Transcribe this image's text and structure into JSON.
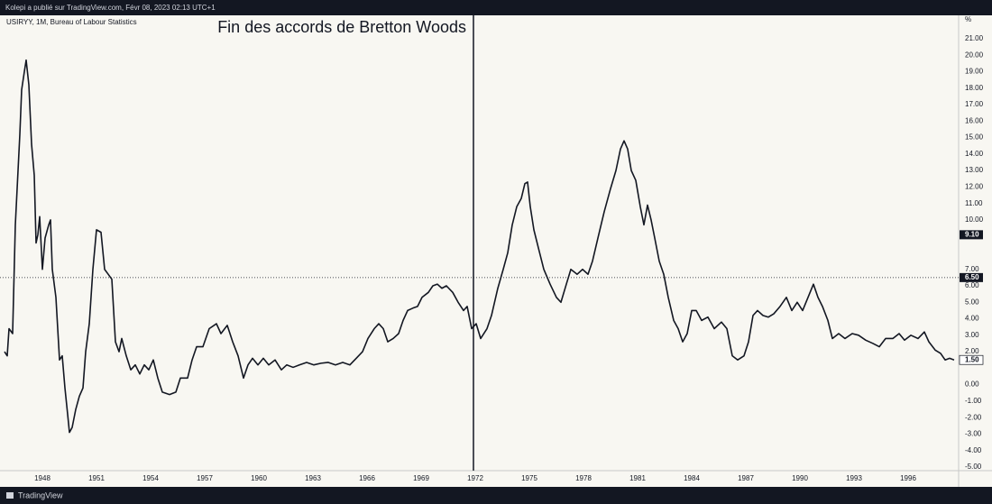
{
  "header": {
    "text": "Kolepi a publié sur TradingView.com, Févr 08, 2023 02:13 UTC+1"
  },
  "footer": {
    "text": "TradingView"
  },
  "chart_data": {
    "type": "line",
    "legend_text": "USIRYY, 1M, Bureau of Labour Statistics",
    "y_unit": "%",
    "color": "#131722",
    "grid": false,
    "xlim": [
      1945.65,
      1998.8
    ],
    "ylim": [
      -5.22,
      22.42
    ],
    "xticks": [
      1948,
      1951,
      1954,
      1957,
      1960,
      1963,
      1966,
      1969,
      1972,
      1975,
      1978,
      1981,
      1984,
      1987,
      1990,
      1993,
      1996
    ],
    "yticks": [
      {
        "value": -5,
        "label": "-5.00"
      },
      {
        "value": -4,
        "label": "-4.00"
      },
      {
        "value": -3,
        "label": "-3.00"
      },
      {
        "value": -2,
        "label": "-2.00"
      },
      {
        "value": -1,
        "label": "-1.00"
      },
      {
        "value": 0,
        "label": "0.00"
      },
      {
        "value": 2,
        "label": "2.00"
      },
      {
        "value": 3,
        "label": "3.00"
      },
      {
        "value": 4,
        "label": "4.00"
      },
      {
        "value": 5,
        "label": "5.00"
      },
      {
        "value": 6,
        "label": "6.00"
      },
      {
        "value": 7,
        "label": "7.00"
      },
      {
        "value": 10,
        "label": "10.00"
      },
      {
        "value": 11,
        "label": "11.00"
      },
      {
        "value": 12,
        "label": "12.00"
      },
      {
        "value": 13,
        "label": "13.00"
      },
      {
        "value": 14,
        "label": "14.00"
      },
      {
        "value": 15,
        "label": "15.00"
      },
      {
        "value": 16,
        "label": "16.00"
      },
      {
        "value": 17,
        "label": "17.00"
      },
      {
        "value": 18,
        "label": "18.00"
      },
      {
        "value": 19,
        "label": "19.00"
      },
      {
        "value": 20,
        "label": "20.00"
      },
      {
        "value": 21,
        "label": "21.00"
      }
    ],
    "price_labels": [
      {
        "value": 9.1,
        "label": "9.10",
        "style": "dark",
        "line": false
      },
      {
        "value": 6.5,
        "label": "6.50",
        "style": "dark",
        "line": true
      },
      {
        "value": 1.5,
        "label": "1.50",
        "style": "light",
        "line": false
      }
    ],
    "vline": {
      "x": 1971.9,
      "text": "Fin des accords de Bretton Woods"
    },
    "x": [
      1945.9,
      1946.05,
      1946.15,
      1946.35,
      1946.5,
      1946.75,
      1946.85,
      1947.0,
      1947.1,
      1947.25,
      1947.4,
      1947.55,
      1947.65,
      1947.75,
      1947.85,
      1948.0,
      1948.15,
      1948.35,
      1948.45,
      1948.55,
      1948.75,
      1948.95,
      1949.1,
      1949.25,
      1949.4,
      1949.5,
      1949.65,
      1949.85,
      1950.05,
      1950.25,
      1950.4,
      1950.6,
      1950.8,
      1951.0,
      1951.25,
      1951.45,
      1951.65,
      1951.85,
      1952.05,
      1952.25,
      1952.4,
      1952.65,
      1952.9,
      1953.15,
      1953.4,
      1953.65,
      1953.9,
      1954.15,
      1954.4,
      1954.65,
      1955.05,
      1955.4,
      1955.65,
      1956.05,
      1956.3,
      1956.55,
      1956.9,
      1957.25,
      1957.65,
      1957.9,
      1958.25,
      1958.55,
      1958.85,
      1959.15,
      1959.4,
      1959.65,
      1959.95,
      1960.25,
      1960.55,
      1960.9,
      1961.25,
      1961.55,
      1961.9,
      1962.25,
      1962.65,
      1963.05,
      1963.45,
      1963.85,
      1964.25,
      1964.65,
      1965.05,
      1965.4,
      1965.75,
      1966.05,
      1966.4,
      1966.65,
      1966.9,
      1967.15,
      1967.45,
      1967.75,
      1968.0,
      1968.25,
      1968.55,
      1968.8,
      1969.05,
      1969.4,
      1969.65,
      1969.9,
      1970.15,
      1970.4,
      1970.75,
      1971.05,
      1971.35,
      1971.55,
      1971.8,
      1972.05,
      1972.3,
      1972.65,
      1972.9,
      1973.25,
      1973.55,
      1973.8,
      1974.05,
      1974.3,
      1974.55,
      1974.75,
      1974.9,
      1975.05,
      1975.25,
      1975.5,
      1975.8,
      1976.15,
      1976.5,
      1976.75,
      1977.05,
      1977.3,
      1977.65,
      1977.95,
      1978.25,
      1978.5,
      1978.8,
      1979.15,
      1979.5,
      1979.8,
      1980.05,
      1980.25,
      1980.45,
      1980.65,
      1980.9,
      1981.15,
      1981.35,
      1981.55,
      1981.75,
      1981.95,
      1982.2,
      1982.45,
      1982.7,
      1983.0,
      1983.25,
      1983.5,
      1983.75,
      1984.0,
      1984.25,
      1984.55,
      1984.9,
      1985.25,
      1985.65,
      1985.95,
      1986.25,
      1986.55,
      1986.9,
      1987.15,
      1987.4,
      1987.65,
      1987.95,
      1988.25,
      1988.55,
      1988.9,
      1989.25,
      1989.55,
      1989.85,
      1990.15,
      1990.45,
      1990.75,
      1991.0,
      1991.25,
      1991.55,
      1991.8,
      1992.15,
      1992.5,
      1992.9,
      1993.25,
      1993.65,
      1994.05,
      1994.4,
      1994.75,
      1995.15,
      1995.5,
      1995.8,
      1996.15,
      1996.55,
      1996.9,
      1997.15,
      1997.5,
      1997.8,
      1998.05,
      1998.3,
      1998.55
    ],
    "values": [
      2.0,
      1.75,
      3.4,
      3.1,
      9.7,
      15.2,
      17.9,
      19.0,
      19.7,
      18.2,
      14.6,
      12.7,
      8.6,
      9.1,
      10.2,
      7.0,
      8.9,
      9.7,
      10.0,
      7.0,
      5.3,
      1.5,
      1.75,
      -0.2,
      -1.8,
      -2.9,
      -2.6,
      -1.5,
      -0.7,
      -0.2,
      2.0,
      3.7,
      7.0,
      9.4,
      9.25,
      7.0,
      6.7,
      6.4,
      2.6,
      2.0,
      2.8,
      1.75,
      0.9,
      1.2,
      0.65,
      1.2,
      0.9,
      1.5,
      0.4,
      -0.45,
      -0.6,
      -0.45,
      0.4,
      0.4,
      1.5,
      2.3,
      2.3,
      3.4,
      3.7,
      3.1,
      3.6,
      2.6,
      1.75,
      0.4,
      1.2,
      1.6,
      1.2,
      1.6,
      1.2,
      1.5,
      0.9,
      1.2,
      1.05,
      1.2,
      1.35,
      1.2,
      1.3,
      1.35,
      1.2,
      1.35,
      1.2,
      1.6,
      2.0,
      2.8,
      3.4,
      3.7,
      3.4,
      2.6,
      2.8,
      3.1,
      3.9,
      4.5,
      4.65,
      4.75,
      5.3,
      5.6,
      6.0,
      6.1,
      5.85,
      6.0,
      5.6,
      5.0,
      4.5,
      4.75,
      3.4,
      3.7,
      2.8,
      3.4,
      4.2,
      5.85,
      7.0,
      8.0,
      9.7,
      10.8,
      11.3,
      12.2,
      12.3,
      10.8,
      9.4,
      8.3,
      7.0,
      6.1,
      5.3,
      5.0,
      6.1,
      7.0,
      6.7,
      7.0,
      6.7,
      7.5,
      8.9,
      10.5,
      11.9,
      13.0,
      14.3,
      14.8,
      14.3,
      13.0,
      12.4,
      10.8,
      9.7,
      10.9,
      10.0,
      8.9,
      7.5,
      6.7,
      5.3,
      3.9,
      3.4,
      2.6,
      3.1,
      4.5,
      4.5,
      3.9,
      4.1,
      3.4,
      3.8,
      3.4,
      1.75,
      1.5,
      1.75,
      2.6,
      4.2,
      4.5,
      4.2,
      4.1,
      4.3,
      4.75,
      5.3,
      4.5,
      5.0,
      4.5,
      5.3,
      6.1,
      5.3,
      4.75,
      3.9,
      2.8,
      3.1,
      2.8,
      3.1,
      3.0,
      2.7,
      2.5,
      2.3,
      2.8,
      2.8,
      3.1,
      2.7,
      3.0,
      2.8,
      3.2,
      2.6,
      2.1,
      1.9,
      1.5,
      1.6,
      1.5
    ]
  }
}
